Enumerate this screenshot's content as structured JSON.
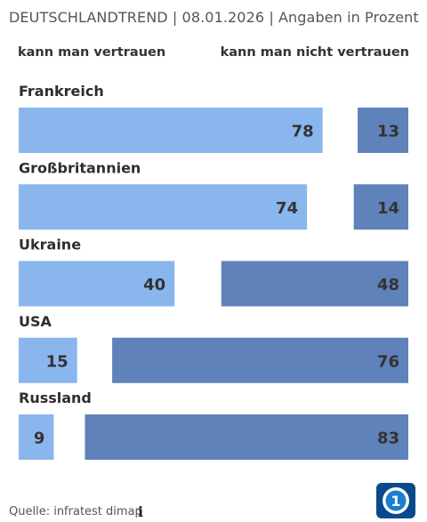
{
  "header": {
    "title": "DEUTSCHLANDTREND | 08.01.2026 | Angaben in Prozent"
  },
  "legend": {
    "left": "kann man vertrauen",
    "right": "kann man nicht vertrauen"
  },
  "footer": {
    "source": "Quelle: infratest dimap"
  },
  "colors": {
    "trust": "#8ab6ee",
    "distrust": "#5e82b9"
  },
  "chart_data": {
    "type": "bar",
    "categories": [
      "Frankreich",
      "Großbritannien",
      "Ukraine",
      "USA",
      "Russland"
    ],
    "series": [
      {
        "name": "kann man vertrauen",
        "values": [
          78,
          74,
          40,
          15,
          9
        ]
      },
      {
        "name": "kann man nicht vertrauen",
        "values": [
          13,
          14,
          48,
          76,
          83
        ]
      }
    ],
    "xlim": [
      0,
      100
    ],
    "title": "DEUTSCHLANDTREND | 08.01.2026 | Angaben in Prozent"
  }
}
